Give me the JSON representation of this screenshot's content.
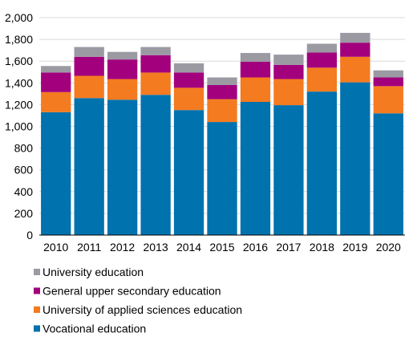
{
  "chart_data": {
    "type": "bar",
    "stacked": true,
    "categories": [
      "2010",
      "2011",
      "2012",
      "2013",
      "2014",
      "2015",
      "2016",
      "2017",
      "2018",
      "2019",
      "2020"
    ],
    "series": [
      {
        "name": "Vocational education",
        "color": "#0072ae",
        "values": [
          1130,
          1260,
          1245,
          1290,
          1150,
          1040,
          1225,
          1195,
          1320,
          1405,
          1120
        ]
      },
      {
        "name": "University of applied sciences education",
        "color": "#f47b20",
        "values": [
          185,
          205,
          190,
          205,
          205,
          210,
          225,
          240,
          220,
          235,
          250
        ]
      },
      {
        "name": "General upper secondary education",
        "color": "#a3007d",
        "values": [
          180,
          175,
          180,
          160,
          140,
          130,
          145,
          130,
          140,
          130,
          80
        ]
      },
      {
        "name": "University education",
        "color": "#9b9aa3",
        "values": [
          60,
          90,
          70,
          75,
          85,
          70,
          80,
          95,
          80,
          90,
          65
        ]
      }
    ],
    "ylim": [
      0,
      2000
    ],
    "yticks": [
      0,
      200,
      400,
      600,
      800,
      1000,
      1200,
      1400,
      1600,
      1800,
      2000
    ],
    "ytick_labels": [
      "0",
      "200",
      "400",
      "600",
      "800",
      "1,000",
      "1,200",
      "1,400",
      "1,600",
      "1,800",
      "2,000"
    ],
    "grid": true,
    "legend_position": "bottom",
    "legend_order": [
      "University education",
      "General upper secondary education",
      "University of applied sciences education",
      "Vocational education"
    ]
  }
}
